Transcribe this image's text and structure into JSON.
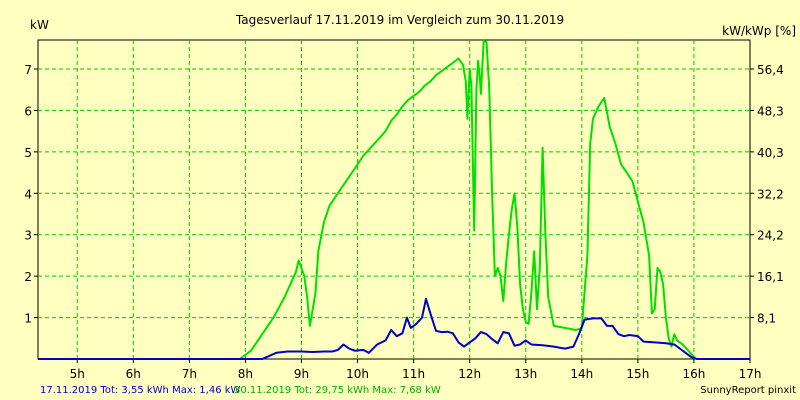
{
  "chart_data": {
    "type": "line",
    "title": "Tagesverlauf 17.11.2019 im Vergleich zum 30.11.2019",
    "ylabel_left": "kW",
    "ylabel_right": "kW/kWp [%]",
    "x_range": [
      4.3,
      17.0
    ],
    "y_range": [
      0,
      7.7
    ],
    "x_ticks": [
      {
        "v": 5,
        "label": "5h"
      },
      {
        "v": 6,
        "label": "6h"
      },
      {
        "v": 7,
        "label": "7h"
      },
      {
        "v": 8,
        "label": "8h"
      },
      {
        "v": 9,
        "label": "9h"
      },
      {
        "v": 10,
        "label": "10h"
      },
      {
        "v": 11,
        "label": "11h"
      },
      {
        "v": 12,
        "label": "12h"
      },
      {
        "v": 13,
        "label": "13h"
      },
      {
        "v": 14,
        "label": "14h"
      },
      {
        "v": 15,
        "label": "15h"
      },
      {
        "v": 16,
        "label": "16h"
      },
      {
        "v": 17,
        "label": "17h"
      }
    ],
    "y_left_ticks": [
      {
        "v": 1,
        "label": "1"
      },
      {
        "v": 2,
        "label": "2"
      },
      {
        "v": 3,
        "label": "3"
      },
      {
        "v": 4,
        "label": "4"
      },
      {
        "v": 5,
        "label": "5"
      },
      {
        "v": 6,
        "label": "6"
      },
      {
        "v": 7,
        "label": "7"
      }
    ],
    "y_right_ticks": [
      {
        "v": 1,
        "label": "8,1"
      },
      {
        "v": 2,
        "label": "16,1"
      },
      {
        "v": 3,
        "label": "24,2"
      },
      {
        "v": 4,
        "label": "32,2"
      },
      {
        "v": 5,
        "label": "40,3"
      },
      {
        "v": 6,
        "label": "48,3"
      },
      {
        "v": 7,
        "label": "56,4"
      }
    ],
    "grid": true,
    "series": [
      {
        "name": "17.11.2019",
        "color": "#0000c8",
        "points": [
          [
            4.3,
            0
          ],
          [
            7.9,
            0
          ],
          [
            8.3,
            0
          ],
          [
            8.55,
            0.15
          ],
          [
            8.75,
            0.18
          ],
          [
            9.0,
            0.18
          ],
          [
            9.2,
            0.17
          ],
          [
            9.4,
            0.18
          ],
          [
            9.55,
            0.18
          ],
          [
            9.65,
            0.22
          ],
          [
            9.75,
            0.35
          ],
          [
            9.85,
            0.25
          ],
          [
            9.95,
            0.2
          ],
          [
            10.1,
            0.22
          ],
          [
            10.2,
            0.15
          ],
          [
            10.35,
            0.35
          ],
          [
            10.5,
            0.45
          ],
          [
            10.6,
            0.7
          ],
          [
            10.7,
            0.55
          ],
          [
            10.8,
            0.62
          ],
          [
            10.88,
            1.0
          ],
          [
            10.95,
            0.75
          ],
          [
            11.05,
            0.85
          ],
          [
            11.15,
            1.0
          ],
          [
            11.22,
            1.45
          ],
          [
            11.3,
            1.1
          ],
          [
            11.4,
            0.68
          ],
          [
            11.5,
            0.65
          ],
          [
            11.6,
            0.66
          ],
          [
            11.7,
            0.62
          ],
          [
            11.8,
            0.4
          ],
          [
            11.9,
            0.3
          ],
          [
            12.0,
            0.4
          ],
          [
            12.1,
            0.5
          ],
          [
            12.2,
            0.65
          ],
          [
            12.3,
            0.6
          ],
          [
            12.4,
            0.48
          ],
          [
            12.5,
            0.38
          ],
          [
            12.6,
            0.65
          ],
          [
            12.7,
            0.62
          ],
          [
            12.8,
            0.32
          ],
          [
            12.9,
            0.35
          ],
          [
            13.0,
            0.45
          ],
          [
            13.1,
            0.35
          ],
          [
            13.3,
            0.33
          ],
          [
            13.5,
            0.3
          ],
          [
            13.7,
            0.25
          ],
          [
            13.85,
            0.3
          ],
          [
            13.95,
            0.6
          ],
          [
            14.05,
            0.95
          ],
          [
            14.2,
            0.98
          ],
          [
            14.35,
            0.98
          ],
          [
            14.45,
            0.8
          ],
          [
            14.55,
            0.8
          ],
          [
            14.65,
            0.6
          ],
          [
            14.75,
            0.55
          ],
          [
            14.85,
            0.58
          ],
          [
            15.0,
            0.55
          ],
          [
            15.1,
            0.42
          ],
          [
            15.3,
            0.4
          ],
          [
            15.5,
            0.38
          ],
          [
            15.65,
            0.35
          ],
          [
            15.75,
            0.25
          ],
          [
            15.85,
            0.15
          ],
          [
            15.95,
            0.05
          ],
          [
            16.05,
            0
          ],
          [
            17.0,
            0
          ]
        ]
      },
      {
        "name": "30.11.2019",
        "color": "#00e000",
        "points": [
          [
            4.3,
            0
          ],
          [
            7.9,
            0
          ],
          [
            8.1,
            0.2
          ],
          [
            8.3,
            0.6
          ],
          [
            8.5,
            1.0
          ],
          [
            8.7,
            1.5
          ],
          [
            8.9,
            2.1
          ],
          [
            8.95,
            2.38
          ],
          [
            9.05,
            2.0
          ],
          [
            9.1,
            1.5
          ],
          [
            9.15,
            0.8
          ],
          [
            9.25,
            1.6
          ],
          [
            9.3,
            2.6
          ],
          [
            9.4,
            3.3
          ],
          [
            9.5,
            3.7
          ],
          [
            9.6,
            3.9
          ],
          [
            9.7,
            4.1
          ],
          [
            9.8,
            4.3
          ],
          [
            9.9,
            4.5
          ],
          [
            10.0,
            4.7
          ],
          [
            10.1,
            4.9
          ],
          [
            10.2,
            5.05
          ],
          [
            10.3,
            5.2
          ],
          [
            10.4,
            5.35
          ],
          [
            10.5,
            5.5
          ],
          [
            10.6,
            5.75
          ],
          [
            10.7,
            5.9
          ],
          [
            10.8,
            6.1
          ],
          [
            10.9,
            6.25
          ],
          [
            11.0,
            6.35
          ],
          [
            11.1,
            6.45
          ],
          [
            11.2,
            6.6
          ],
          [
            11.3,
            6.7
          ],
          [
            11.4,
            6.85
          ],
          [
            11.5,
            6.95
          ],
          [
            11.6,
            7.05
          ],
          [
            11.7,
            7.15
          ],
          [
            11.8,
            7.25
          ],
          [
            11.88,
            7.1
          ],
          [
            11.93,
            6.7
          ],
          [
            11.96,
            5.8
          ],
          [
            12.0,
            7.0
          ],
          [
            12.03,
            6.6
          ],
          [
            12.05,
            5.2
          ],
          [
            12.08,
            3.1
          ],
          [
            12.12,
            6.5
          ],
          [
            12.15,
            7.2
          ],
          [
            12.18,
            6.8
          ],
          [
            12.2,
            6.4
          ],
          [
            12.25,
            7.68
          ],
          [
            12.3,
            7.65
          ],
          [
            12.35,
            6.5
          ],
          [
            12.4,
            4.0
          ],
          [
            12.45,
            2.0
          ],
          [
            12.5,
            2.2
          ],
          [
            12.55,
            2.0
          ],
          [
            12.6,
            1.4
          ],
          [
            12.65,
            2.3
          ],
          [
            12.7,
            3.0
          ],
          [
            12.75,
            3.6
          ],
          [
            12.8,
            4.0
          ],
          [
            12.85,
            3.2
          ],
          [
            12.9,
            1.8
          ],
          [
            12.95,
            1.2
          ],
          [
            13.0,
            0.9
          ],
          [
            13.05,
            0.85
          ],
          [
            13.1,
            1.6
          ],
          [
            13.15,
            2.6
          ],
          [
            13.2,
            1.2
          ],
          [
            13.25,
            2.2
          ],
          [
            13.3,
            5.1
          ],
          [
            13.35,
            3.0
          ],
          [
            13.4,
            1.5
          ],
          [
            13.5,
            0.8
          ],
          [
            13.7,
            0.75
          ],
          [
            13.9,
            0.7
          ],
          [
            14.0,
            0.75
          ],
          [
            14.1,
            2.5
          ],
          [
            14.15,
            5.2
          ],
          [
            14.2,
            5.8
          ],
          [
            14.3,
            6.1
          ],
          [
            14.4,
            6.3
          ],
          [
            14.5,
            5.6
          ],
          [
            14.6,
            5.2
          ],
          [
            14.7,
            4.7
          ],
          [
            14.8,
            4.5
          ],
          [
            14.9,
            4.3
          ],
          [
            15.0,
            3.8
          ],
          [
            15.1,
            3.3
          ],
          [
            15.2,
            2.5
          ],
          [
            15.25,
            1.1
          ],
          [
            15.3,
            1.2
          ],
          [
            15.35,
            2.2
          ],
          [
            15.4,
            2.1
          ],
          [
            15.45,
            1.8
          ],
          [
            15.5,
            1.0
          ],
          [
            15.55,
            0.5
          ],
          [
            15.6,
            0.3
          ],
          [
            15.65,
            0.6
          ],
          [
            15.7,
            0.45
          ],
          [
            15.8,
            0.35
          ],
          [
            15.9,
            0.2
          ],
          [
            16.0,
            0.05
          ],
          [
            16.05,
            0
          ],
          [
            17.0,
            0
          ]
        ]
      }
    ]
  },
  "footer": {
    "left_blue": "17.11.2019 Tot: 3,55 kWh Max: 1,46 kW",
    "left_green": "30.11.2019 Tot: 29,75 kWh Max: 7,68 kW",
    "right": "SunnyReport pinxit"
  },
  "colors": {
    "background": "#ffffc0",
    "grid": "#00cc00",
    "series1": "#0000c8",
    "series2": "#00e000"
  }
}
